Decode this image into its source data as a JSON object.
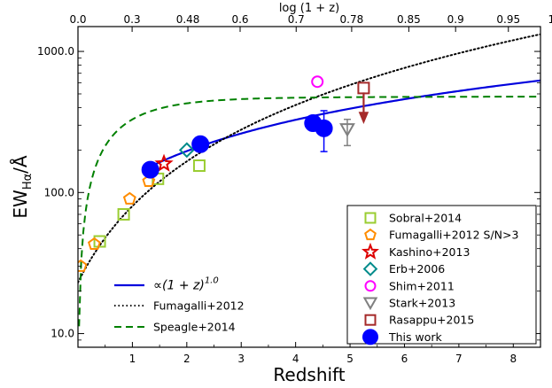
{
  "chart_data": {
    "type": "scatter",
    "xlabel": "Redshift",
    "ylabel": "EW_Hα/Å",
    "top_xlabel": "log (1 + z)",
    "x_scale": "linear",
    "y_scale": "log",
    "xlim": [
      0,
      8.5
    ],
    "ylim": [
      8,
      1500
    ],
    "x_ticks": [
      1,
      2,
      3,
      4,
      5,
      6,
      7,
      8
    ],
    "x_tick_labels": [
      "1",
      "2",
      "3",
      "4",
      "5",
      "6",
      "7",
      "8"
    ],
    "y_ticks": [
      10,
      100,
      1000
    ],
    "y_tick_labels": [
      "10.0",
      "100.0",
      "1000.0"
    ],
    "top_ticks": [
      {
        "label": "0.0",
        "z": 0
      },
      {
        "label": "0.3",
        "z": 0.995
      },
      {
        "label": "0.48",
        "z": 2.02
      },
      {
        "label": "0.6",
        "z": 2.98
      },
      {
        "label": "0.7",
        "z": 4.01
      },
      {
        "label": "0.78",
        "z": 5.03
      },
      {
        "label": "0.85",
        "z": 6.08
      },
      {
        "label": "0.9",
        "z": 6.94
      },
      {
        "label": "0.95",
        "z": 7.91
      },
      {
        "label": "1.0",
        "z": 9.0
      }
    ],
    "curves": [
      {
        "name": "∝(1 + z)^1.0",
        "style": "solid",
        "color": "#0000dd",
        "model": "power",
        "coef": 65.5,
        "exp": 1.0,
        "x_from": 1.3,
        "x_to": 8.5
      },
      {
        "name": "Fumagalli+2012",
        "style": "dotted",
        "color": "#000000",
        "model": "power",
        "coef": 23.0,
        "exp": 1.8,
        "x_from": 0.0,
        "x_to": 8.5
      },
      {
        "name": "Speagle+2014",
        "style": "dashed",
        "color": "#008000",
        "model": "speagle",
        "x_from": 0.02,
        "x_to": 8.5
      }
    ],
    "series": [
      {
        "name": "Sobral+2014",
        "marker": "square",
        "color": "#9acd32",
        "filled": false,
        "points": [
          {
            "x": 0.4,
            "y": 45
          },
          {
            "x": 0.84,
            "y": 70
          },
          {
            "x": 1.47,
            "y": 125
          },
          {
            "x": 2.23,
            "y": 155
          }
        ]
      },
      {
        "name": "Fumagalli+2012 S/N>3",
        "marker": "pentagon",
        "color": "#ff8c00",
        "filled": false,
        "points": [
          {
            "x": 0.05,
            "y": 30
          },
          {
            "x": 0.3,
            "y": 43
          },
          {
            "x": 0.95,
            "y": 90
          },
          {
            "x": 1.3,
            "y": 120
          }
        ]
      },
      {
        "name": "Kashino+2013",
        "marker": "star",
        "color": "#dd0000",
        "filled": false,
        "points": [
          {
            "x": 1.58,
            "y": 160
          }
        ]
      },
      {
        "name": "Erb+2006",
        "marker": "diamond",
        "color": "#008b8b",
        "filled": false,
        "points": [
          {
            "x": 2.0,
            "y": 200
          }
        ]
      },
      {
        "name": "Shim+2011",
        "marker": "circle",
        "color": "#ff00ff",
        "filled": false,
        "points": [
          {
            "x": 4.4,
            "y": 610
          }
        ]
      },
      {
        "name": "Stark+2013",
        "marker": "triangle-down",
        "color": "#808080",
        "filled": false,
        "points": [
          {
            "x": 4.95,
            "y": 280,
            "yerr_low": 215,
            "yerr_high": 330
          }
        ]
      },
      {
        "name": "Rasappu+2015",
        "marker": "square",
        "color": "#a52a2a",
        "filled": false,
        "upper_limit": true,
        "points": [
          {
            "x": 5.25,
            "y": 550,
            "arrow_to": 330
          }
        ]
      },
      {
        "name": "This work",
        "marker": "circle",
        "color": "#0000ff",
        "filled": true,
        "points": [
          {
            "x": 1.33,
            "y": 145
          },
          {
            "x": 2.25,
            "y": 220
          },
          {
            "x": 4.32,
            "y": 310
          },
          {
            "x": 4.52,
            "y": 285,
            "yerr_low": 195,
            "yerr_high": 380
          }
        ]
      }
    ],
    "legend_main_position": "lower-right",
    "legend_lines_position": "lower-left"
  }
}
